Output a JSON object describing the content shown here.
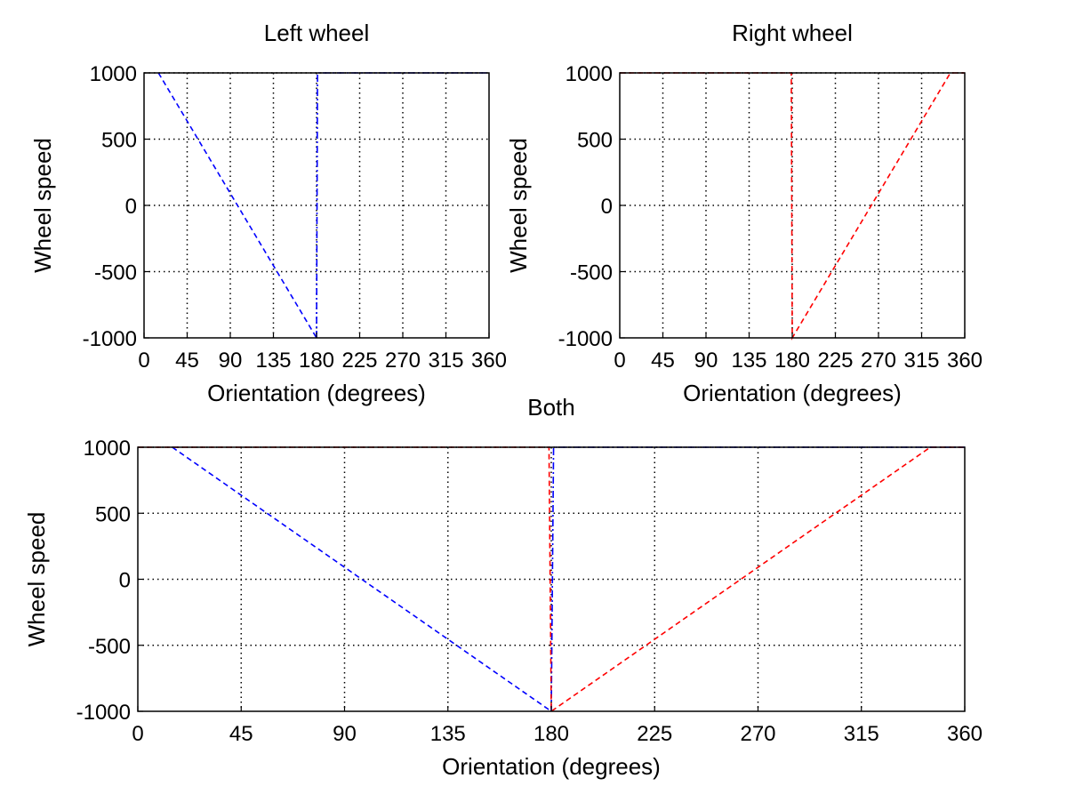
{
  "chart_data": [
    {
      "id": "left",
      "type": "line",
      "title": "Left wheel",
      "xlabel": "Orientation (degrees)",
      "ylabel": "Wheel speed",
      "xlim": [
        0,
        360
      ],
      "ylim": [
        -1000,
        1000
      ],
      "xticks": [
        0,
        45,
        90,
        135,
        180,
        225,
        270,
        315,
        360
      ],
      "yticks": [
        -1000,
        -500,
        0,
        500,
        1000
      ],
      "grid": true,
      "series": [
        {
          "color": "#0000ff",
          "dash": "dashed",
          "x": [
            15,
            180
          ],
          "y": [
            1000,
            -1000
          ]
        },
        {
          "color": "#0000ff",
          "dash": "dashdot",
          "x": [
            180,
            181,
            360
          ],
          "y": [
            -1000,
            1000,
            1000
          ]
        }
      ]
    },
    {
      "id": "right",
      "type": "line",
      "title": "Right wheel",
      "xlabel": "Orientation (degrees)",
      "ylabel": "Wheel speed",
      "xlim": [
        0,
        360
      ],
      "ylim": [
        -1000,
        1000
      ],
      "xticks": [
        0,
        45,
        90,
        135,
        180,
        225,
        270,
        315,
        360
      ],
      "yticks": [
        -1000,
        -500,
        0,
        500,
        1000
      ],
      "grid": true,
      "series": [
        {
          "color": "#ff0000",
          "dash": "dashed",
          "x": [
            0,
            179,
            180,
            345,
            360
          ],
          "y": [
            1000,
            1000,
            -1000,
            1000,
            1000
          ]
        }
      ]
    },
    {
      "id": "both",
      "type": "line",
      "title": "Both",
      "xlabel": "Orientation (degrees)",
      "ylabel": "Wheel speed",
      "xlim": [
        0,
        360
      ],
      "ylim": [
        -1000,
        1000
      ],
      "xticks": [
        0,
        45,
        90,
        135,
        180,
        225,
        270,
        315,
        360
      ],
      "yticks": [
        -1000,
        -500,
        0,
        500,
        1000
      ],
      "grid": true,
      "series": [
        {
          "color": "#0000ff",
          "dash": "dashed",
          "x": [
            15,
            180
          ],
          "y": [
            1000,
            -1000
          ]
        },
        {
          "color": "#0000ff",
          "dash": "dashdot",
          "x": [
            180,
            181,
            360
          ],
          "y": [
            -1000,
            1000,
            1000
          ]
        },
        {
          "color": "#ff0000",
          "dash": "dashed",
          "x": [
            0,
            179,
            180,
            345,
            360
          ],
          "y": [
            1000,
            1000,
            -1000,
            1000,
            1000
          ]
        }
      ]
    }
  ]
}
